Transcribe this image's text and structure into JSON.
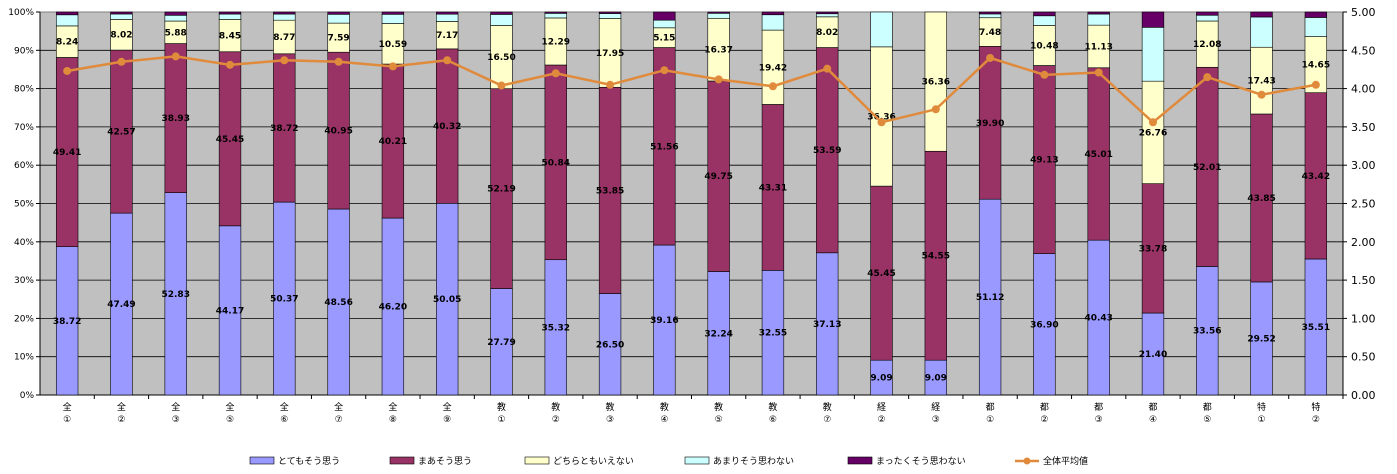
{
  "chart_data": {
    "type": "bar",
    "stacked": true,
    "categories": [
      [
        "全",
        "①"
      ],
      [
        "全",
        "②"
      ],
      [
        "全",
        "③"
      ],
      [
        "全",
        "⑤"
      ],
      [
        "全",
        "⑥"
      ],
      [
        "全",
        "⑦"
      ],
      [
        "全",
        "⑧"
      ],
      [
        "全",
        "⑨"
      ],
      [
        "教",
        "①"
      ],
      [
        "教",
        "②"
      ],
      [
        "教",
        "③"
      ],
      [
        "教",
        "④"
      ],
      [
        "教",
        "⑤"
      ],
      [
        "教",
        "⑥"
      ],
      [
        "教",
        "⑦"
      ],
      [
        "経",
        "②"
      ],
      [
        "経",
        "③"
      ],
      [
        "都",
        "①"
      ],
      [
        "都",
        "②"
      ],
      [
        "都",
        "③"
      ],
      [
        "都",
        "④"
      ],
      [
        "都",
        "⑤"
      ],
      [
        "特",
        "①"
      ],
      [
        "特",
        "②"
      ]
    ],
    "series": [
      {
        "name": "とてもそう思う",
        "color": "#9999ff",
        "labeled": true,
        "values": [
          38.72,
          47.49,
          52.83,
          44.17,
          50.37,
          48.56,
          46.2,
          50.05,
          27.79,
          35.32,
          26.5,
          39.16,
          32.24,
          32.55,
          37.13,
          9.09,
          9.09,
          51.12,
          36.9,
          40.43,
          21.4,
          33.56,
          29.52,
          35.51
        ]
      },
      {
        "name": "まあそう思う",
        "color": "#993366",
        "labeled": true,
        "values": [
          49.41,
          42.57,
          38.93,
          45.45,
          38.72,
          40.95,
          40.21,
          40.32,
          52.19,
          50.84,
          53.85,
          51.56,
          49.75,
          43.31,
          53.59,
          45.45,
          54.55,
          39.9,
          49.13,
          45.01,
          33.78,
          52.01,
          43.85,
          43.42
        ]
      },
      {
        "name": "どちらともいえない",
        "color": "#ffffcc",
        "labeled": true,
        "values": [
          8.24,
          8.02,
          5.88,
          8.45,
          8.77,
          7.59,
          10.59,
          7.17,
          16.5,
          12.29,
          17.95,
          5.15,
          16.37,
          19.42,
          8.02,
          36.36,
          36.36,
          7.48,
          10.48,
          11.13,
          26.76,
          12.08,
          17.43,
          14.65
        ]
      },
      {
        "name": "あまりそう思わない",
        "color": "#ccffff",
        "labeled": false,
        "values": [
          2.9,
          1.4,
          1.5,
          1.4,
          1.6,
          2.3,
          2.4,
          1.9,
          2.9,
          1.2,
          1.3,
          2.0,
          1.3,
          4.0,
          0.8,
          9.1,
          0.0,
          1.0,
          2.5,
          2.9,
          14.06,
          1.5,
          7.9,
          5.0
        ]
      },
      {
        "name": "まったくそう思わない",
        "color": "#660066",
        "labeled": false,
        "values": [
          0.73,
          0.52,
          0.86,
          0.53,
          0.54,
          0.6,
          0.6,
          0.56,
          0.62,
          0.35,
          0.4,
          2.13,
          0.34,
          0.72,
          0.46,
          0.0,
          0.0,
          0.5,
          0.99,
          0.53,
          4.0,
          0.85,
          1.3,
          1.42
        ]
      }
    ],
    "line": {
      "name": "全体平均値",
      "color": "#e08a3c",
      "axis": "right",
      "values": [
        4.23,
        4.35,
        4.42,
        4.31,
        4.37,
        4.35,
        4.29,
        4.37,
        4.04,
        4.2,
        4.05,
        4.24,
        4.12,
        4.03,
        4.26,
        3.56,
        3.73,
        4.4,
        4.18,
        4.21,
        3.56,
        4.15,
        3.92,
        4.05
      ]
    },
    "y_left": {
      "min": 0,
      "max": 100,
      "step": 10,
      "suffix": "%"
    },
    "y_right": {
      "min": 0,
      "max": 5,
      "step": 0.5
    },
    "plot_background": "#c0c0c0",
    "grid": true,
    "legend_position": "bottom"
  }
}
